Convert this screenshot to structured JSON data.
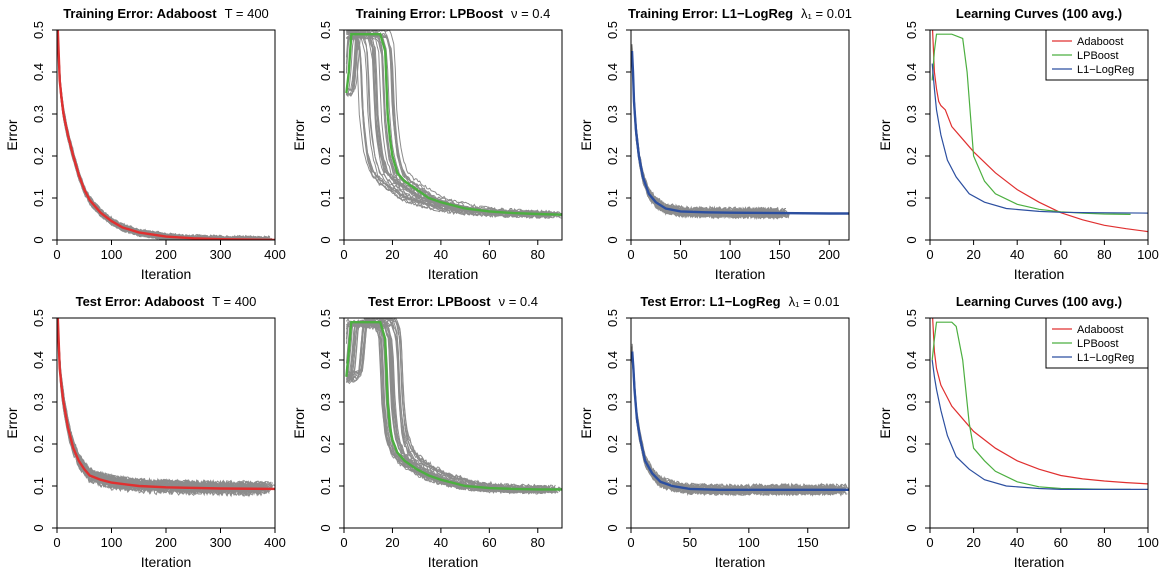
{
  "chart_data": [
    {
      "id": "train-adaboost",
      "type": "line",
      "title": "Training Error: Adaboost",
      "title_param": "T = 400",
      "xlabel": "Iteration",
      "ylabel": "Error",
      "xlim": [
        0,
        400
      ],
      "ylim": [
        0,
        0.5
      ],
      "xticks": [
        0,
        100,
        200,
        300,
        400
      ],
      "yticks": [
        0.0,
        0.1,
        0.2,
        0.3,
        0.4,
        0.5
      ],
      "grid": false,
      "gray_runs": {
        "color": "#8c8c8c",
        "count": 30,
        "x_end": 400,
        "spread": 0.012,
        "jump_range": [
          0,
          0
        ],
        "stagger": 0
      },
      "series": [
        {
          "color": "#e03030",
          "x": [
            1,
            3,
            5,
            8,
            12,
            20,
            30,
            40,
            50,
            60,
            80,
            100,
            120,
            150,
            200,
            250,
            300,
            350,
            400
          ],
          "y": [
            0.52,
            0.45,
            0.38,
            0.34,
            0.3,
            0.25,
            0.2,
            0.155,
            0.12,
            0.095,
            0.065,
            0.045,
            0.03,
            0.018,
            0.008,
            0.004,
            0.002,
            0.001,
            0.0
          ]
        }
      ]
    },
    {
      "id": "train-lpboost",
      "type": "line",
      "title": "Training Error: LPBoost",
      "title_param": "ν = 0.4",
      "xlabel": "Iteration",
      "ylabel": "Error",
      "xlim": [
        0,
        90
      ],
      "ylim": [
        0,
        0.5
      ],
      "xticks": [
        0,
        20,
        40,
        60,
        80
      ],
      "yticks": [
        0.0,
        0.1,
        0.2,
        0.3,
        0.4,
        0.5
      ],
      "grid": false,
      "gray_runs": {
        "color": "#8c8c8c",
        "count": 30,
        "x_end": 90,
        "spread": 0.01,
        "jump_range": [
          -12,
          6
        ],
        "stagger": 4
      },
      "series": [
        {
          "color": "#4caf40",
          "x": [
            1,
            2,
            3,
            5,
            10,
            15,
            17,
            18,
            19,
            20,
            22,
            25,
            30,
            35,
            40,
            50,
            60,
            70,
            80,
            92
          ],
          "y": [
            0.35,
            0.4,
            0.49,
            0.49,
            0.49,
            0.49,
            0.45,
            0.3,
            0.24,
            0.2,
            0.16,
            0.14,
            0.12,
            0.1,
            0.09,
            0.075,
            0.068,
            0.064,
            0.062,
            0.06
          ]
        }
      ]
    },
    {
      "id": "train-l1logreg",
      "type": "line",
      "title": "Training Error: L1−LogReg",
      "title_param": "λ₁ = 0.01",
      "xlabel": "Iteration",
      "ylabel": "Error",
      "xlim": [
        0,
        220
      ],
      "ylim": [
        0,
        0.5
      ],
      "xticks": [
        0,
        50,
        100,
        150,
        200
      ],
      "yticks": [
        0.0,
        0.1,
        0.2,
        0.3,
        0.4,
        0.5
      ],
      "grid": false,
      "gray_runs": {
        "color": "#8c8c8c",
        "count": 30,
        "x_end": 160,
        "spread": 0.015,
        "jump_range": [
          0,
          0
        ],
        "stagger": 0
      },
      "series": [
        {
          "color": "#2c4fa0",
          "x": [
            1,
            2,
            3,
            5,
            8,
            12,
            18,
            25,
            35,
            50,
            75,
            100,
            150,
            200,
            220
          ],
          "y": [
            0.45,
            0.4,
            0.33,
            0.26,
            0.2,
            0.15,
            0.11,
            0.09,
            0.075,
            0.068,
            0.066,
            0.065,
            0.064,
            0.063,
            0.063
          ]
        }
      ]
    },
    {
      "id": "train-curves",
      "type": "line",
      "title": "Learning Curves (100 avg.)",
      "title_param": "",
      "xlabel": "Iteration",
      "ylabel": "Error",
      "xlim": [
        0,
        100
      ],
      "ylim": [
        0,
        0.5
      ],
      "xticks": [
        0,
        20,
        40,
        60,
        80,
        100
      ],
      "yticks": [
        0.0,
        0.1,
        0.2,
        0.3,
        0.4,
        0.5
      ],
      "grid": false,
      "legend": "top-right",
      "series": [
        {
          "name": "Adaboost",
          "color": "#e03030",
          "x": [
            1,
            2,
            3,
            4,
            5,
            7,
            10,
            15,
            20,
            30,
            40,
            50,
            60,
            70,
            80,
            90,
            100
          ],
          "y": [
            0.52,
            0.4,
            0.36,
            0.33,
            0.32,
            0.31,
            0.27,
            0.24,
            0.21,
            0.16,
            0.12,
            0.09,
            0.065,
            0.048,
            0.035,
            0.027,
            0.02
          ]
        },
        {
          "name": "LPBoost",
          "color": "#4caf40",
          "x": [
            1,
            2,
            3,
            5,
            10,
            15,
            17,
            20,
            25,
            30,
            40,
            50,
            60,
            70,
            80,
            92
          ],
          "y": [
            0.38,
            0.45,
            0.49,
            0.49,
            0.49,
            0.48,
            0.4,
            0.2,
            0.14,
            0.11,
            0.085,
            0.073,
            0.067,
            0.064,
            0.062,
            0.061
          ]
        },
        {
          "name": "L1−LogReg",
          "color": "#2c4fa0",
          "x": [
            1,
            2,
            3,
            5,
            8,
            12,
            18,
            25,
            35,
            50,
            60,
            75,
            100
          ],
          "y": [
            0.42,
            0.36,
            0.31,
            0.25,
            0.19,
            0.15,
            0.11,
            0.09,
            0.075,
            0.068,
            0.066,
            0.065,
            0.064
          ]
        }
      ]
    },
    {
      "id": "test-adaboost",
      "type": "line",
      "title": "Test Error: Adaboost",
      "title_param": "T = 400",
      "xlabel": "Iteration",
      "ylabel": "Error",
      "xlim": [
        0,
        400
      ],
      "ylim": [
        0,
        0.5
      ],
      "xticks": [
        0,
        100,
        200,
        300,
        400
      ],
      "yticks": [
        0.0,
        0.1,
        0.2,
        0.3,
        0.4,
        0.5
      ],
      "grid": false,
      "gray_runs": {
        "color": "#8c8c8c",
        "count": 30,
        "x_end": 400,
        "spread": 0.02,
        "jump_range": [
          0,
          0
        ],
        "stagger": 0
      },
      "series": [
        {
          "color": "#e03030",
          "x": [
            1,
            3,
            5,
            8,
            12,
            20,
            30,
            40,
            50,
            60,
            80,
            100,
            150,
            200,
            300,
            400
          ],
          "y": [
            0.52,
            0.45,
            0.38,
            0.34,
            0.3,
            0.24,
            0.19,
            0.16,
            0.14,
            0.125,
            0.115,
            0.108,
            0.1,
            0.097,
            0.094,
            0.093
          ]
        }
      ]
    },
    {
      "id": "test-lpboost",
      "type": "line",
      "title": "Test Error: LPBoost",
      "title_param": "ν = 0.4",
      "xlabel": "Iteration",
      "ylabel": "Error",
      "xlim": [
        0,
        90
      ],
      "ylim": [
        0,
        0.5
      ],
      "xticks": [
        0,
        20,
        40,
        60,
        80
      ],
      "yticks": [
        0.0,
        0.1,
        0.2,
        0.3,
        0.4,
        0.5
      ],
      "grid": false,
      "gray_runs": {
        "color": "#8c8c8c",
        "count": 30,
        "x_end": 90,
        "spread": 0.012,
        "jump_range": [
          -3,
          8
        ],
        "stagger": 4
      },
      "series": [
        {
          "color": "#4caf40",
          "x": [
            1,
            2,
            3,
            5,
            10,
            15,
            17,
            18,
            19,
            20,
            22,
            25,
            30,
            35,
            40,
            50,
            60,
            70,
            80,
            92
          ],
          "y": [
            0.36,
            0.42,
            0.49,
            0.49,
            0.49,
            0.49,
            0.45,
            0.3,
            0.24,
            0.21,
            0.18,
            0.16,
            0.14,
            0.125,
            0.115,
            0.1,
            0.095,
            0.093,
            0.092,
            0.092
          ]
        }
      ]
    },
    {
      "id": "test-l1logreg",
      "type": "line",
      "title": "Test Error: L1−LogReg",
      "title_param": "λ₁ = 0.01",
      "xlabel": "Iteration",
      "ylabel": "Error",
      "xlim": [
        0,
        185
      ],
      "ylim": [
        0,
        0.5
      ],
      "xticks": [
        0,
        50,
        100,
        150
      ],
      "yticks": [
        0.0,
        0.1,
        0.2,
        0.3,
        0.4,
        0.5
      ],
      "grid": false,
      "gray_runs": {
        "color": "#8c8c8c",
        "count": 30,
        "x_end": 185,
        "spread": 0.015,
        "jump_range": [
          0,
          0
        ],
        "stagger": 0
      },
      "series": [
        {
          "color": "#2c4fa0",
          "x": [
            1,
            2,
            3,
            5,
            8,
            12,
            18,
            25,
            35,
            50,
            75,
            100,
            150,
            185
          ],
          "y": [
            0.42,
            0.38,
            0.33,
            0.26,
            0.21,
            0.16,
            0.13,
            0.11,
            0.1,
            0.093,
            0.091,
            0.091,
            0.091,
            0.091
          ]
        }
      ]
    },
    {
      "id": "test-curves",
      "type": "line",
      "title": "Learning Curves (100 avg.)",
      "title_param": "",
      "xlabel": "Iteration",
      "ylabel": "Error",
      "xlim": [
        0,
        100
      ],
      "ylim": [
        0,
        0.5
      ],
      "xticks": [
        0,
        20,
        40,
        60,
        80,
        100
      ],
      "yticks": [
        0.0,
        0.1,
        0.2,
        0.3,
        0.4,
        0.5
      ],
      "grid": false,
      "legend": "top-right",
      "series": [
        {
          "name": "Adaboost",
          "color": "#e03030",
          "x": [
            1,
            2,
            3,
            4,
            5,
            7,
            10,
            15,
            20,
            30,
            40,
            50,
            60,
            70,
            80,
            90,
            100
          ],
          "y": [
            0.52,
            0.42,
            0.38,
            0.36,
            0.34,
            0.32,
            0.29,
            0.26,
            0.23,
            0.19,
            0.16,
            0.14,
            0.125,
            0.117,
            0.112,
            0.108,
            0.105
          ]
        },
        {
          "name": "LPBoost",
          "color": "#4caf40",
          "x": [
            1,
            2,
            3,
            5,
            10,
            12,
            15,
            18,
            20,
            25,
            30,
            40,
            50,
            60,
            70,
            80,
            92
          ],
          "y": [
            0.4,
            0.45,
            0.49,
            0.49,
            0.49,
            0.48,
            0.4,
            0.25,
            0.19,
            0.16,
            0.135,
            0.11,
            0.098,
            0.094,
            0.093,
            0.092,
            0.092
          ]
        },
        {
          "name": "L1−LogReg",
          "color": "#2c4fa0",
          "x": [
            1,
            2,
            3,
            5,
            8,
            12,
            18,
            25,
            35,
            50,
            60,
            75,
            100
          ],
          "y": [
            0.4,
            0.36,
            0.33,
            0.28,
            0.22,
            0.17,
            0.14,
            0.115,
            0.1,
            0.094,
            0.092,
            0.092,
            0.092
          ]
        }
      ]
    }
  ]
}
